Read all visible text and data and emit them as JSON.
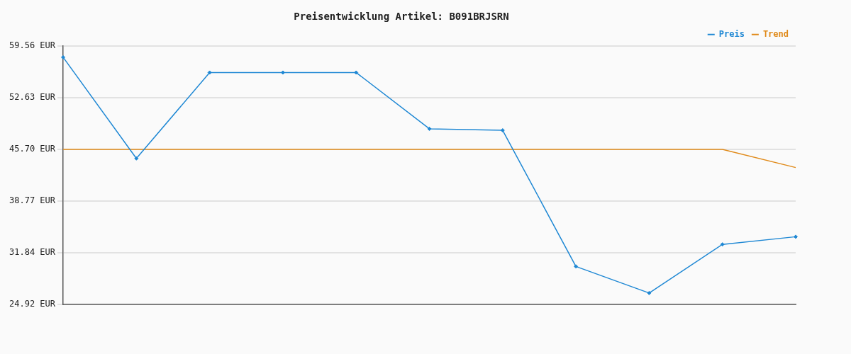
{
  "chart_data": {
    "type": "line",
    "title": "Preisentwicklung Artikel: B091BRJSRN",
    "categories": [
      null,
      null,
      null,
      null,
      null,
      null,
      null,
      null,
      null,
      null,
      null
    ],
    "series": [
      {
        "name": "Preis",
        "color": "#1f88d4",
        "marker": "diamond",
        "values": [
          58.03,
          44.48,
          55.99,
          55.99,
          55.99,
          48.45,
          48.25,
          30.01,
          26.45,
          32.97,
          33.99
        ]
      },
      {
        "name": "Trend",
        "color": "#e08a1a",
        "marker": "none",
        "values": [
          45.7,
          45.7,
          45.7,
          45.7,
          45.7,
          45.7,
          45.7,
          45.7,
          45.7,
          45.7,
          43.26
        ]
      }
    ],
    "ylim": [
      24.92,
      59.56
    ],
    "yticks": [
      {
        "value": 24.92,
        "label": "24.92 EUR"
      },
      {
        "value": 31.84,
        "label": "31.84 EUR"
      },
      {
        "value": 38.77,
        "label": "38.77 EUR"
      },
      {
        "value": 45.7,
        "label": "45.70 EUR"
      },
      {
        "value": 52.63,
        "label": "52.63 EUR"
      },
      {
        "value": 59.56,
        "label": "59.56 EUR"
      }
    ],
    "grid": "y",
    "legend": "top right",
    "line_style": "solid",
    "tick_labels": "y"
  }
}
